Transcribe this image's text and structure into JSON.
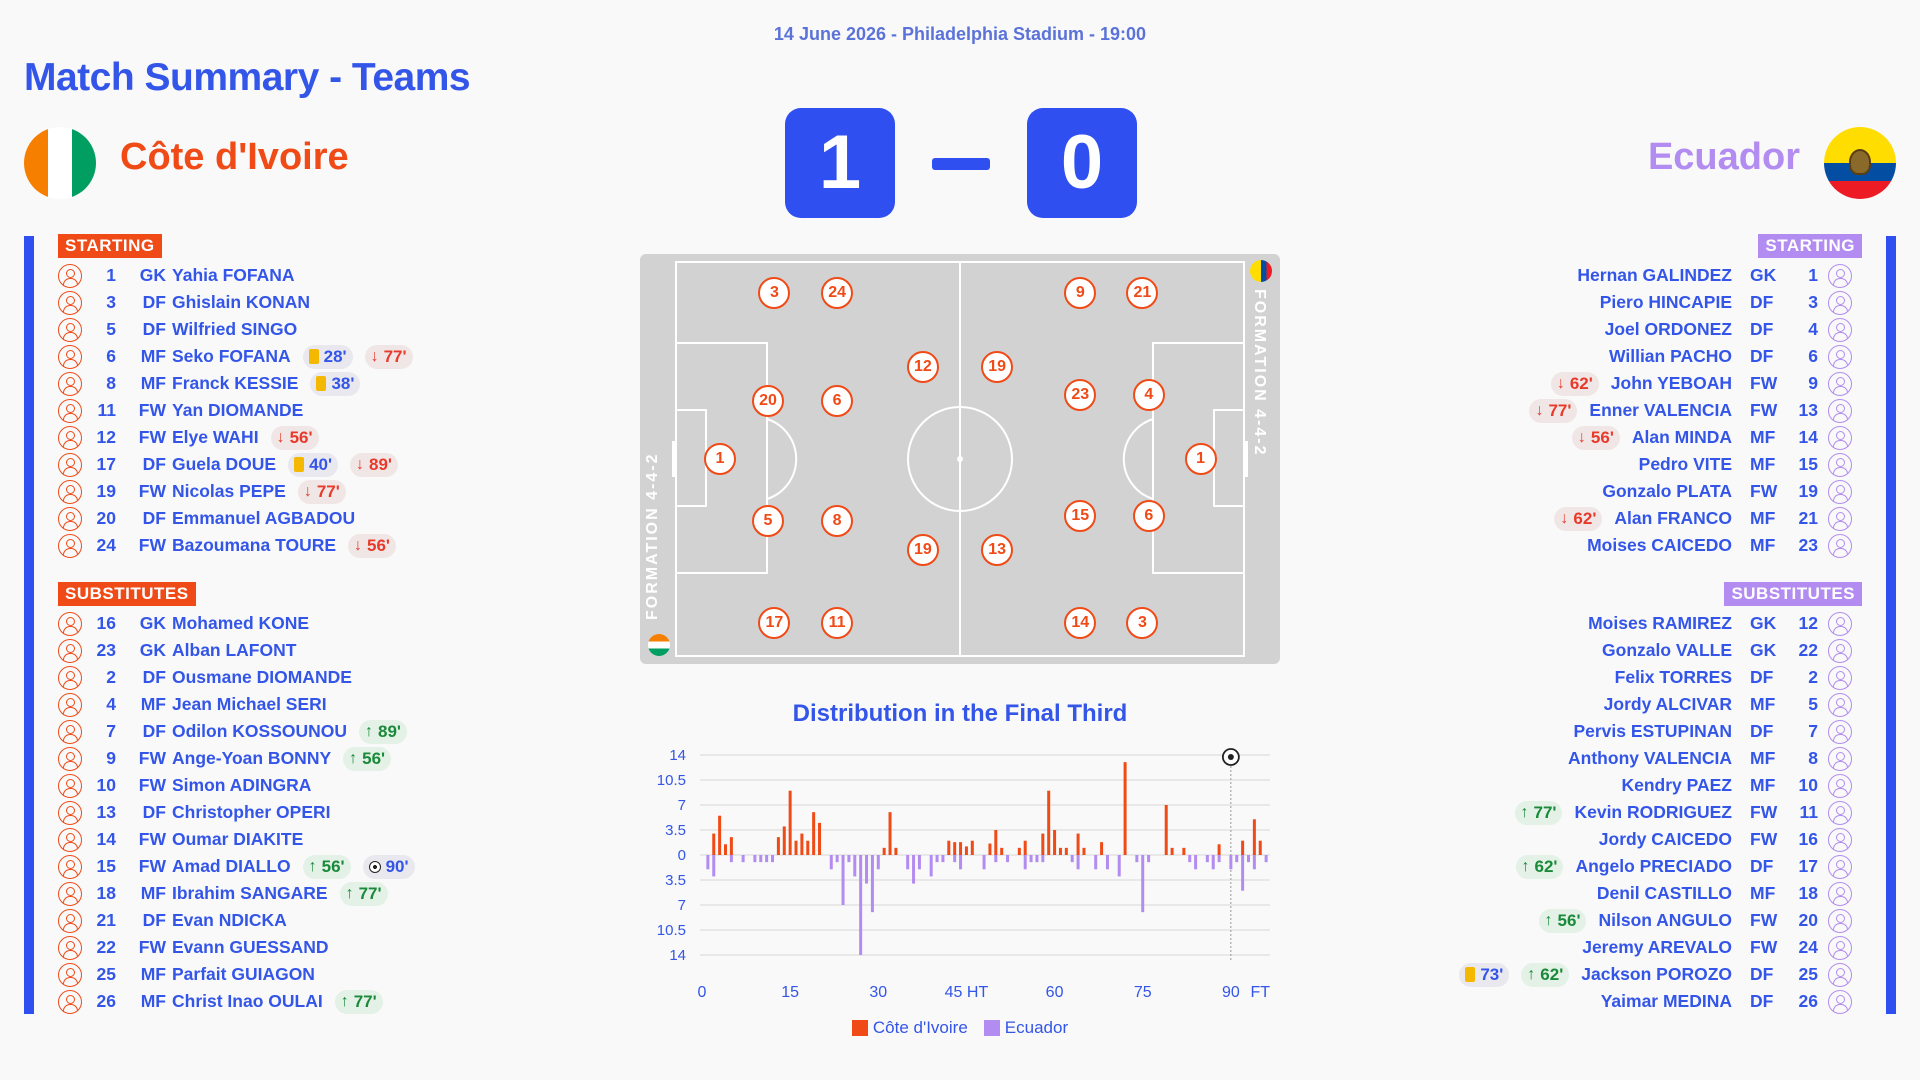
{
  "header": {
    "match_info": "14 June 2026 - Philadelphia Stadium - 19:00",
    "title": "Match Summary - Teams"
  },
  "home": {
    "name": "Côte d'Ivoire",
    "score": "1",
    "color": "#f04a16",
    "flag_icon": "cote-divoire-flag",
    "formation": "FORMATION 4-4-2",
    "starting_label": "STARTING",
    "subs_label": "SUBSTITUTES",
    "starting": [
      {
        "num": "1",
        "pos": "GK",
        "name": "Yahia FOFANA",
        "events": []
      },
      {
        "num": "3",
        "pos": "DF",
        "name": "Ghislain KONAN",
        "events": []
      },
      {
        "num": "5",
        "pos": "DF",
        "name": "Wilfried SINGO",
        "events": []
      },
      {
        "num": "6",
        "pos": "MF",
        "name": "Seko FOFANA",
        "events": [
          {
            "type": "card",
            "text": "28'"
          },
          {
            "type": "out",
            "text": "77'"
          }
        ]
      },
      {
        "num": "8",
        "pos": "MF",
        "name": "Franck KESSIE",
        "events": [
          {
            "type": "card",
            "text": "38'"
          }
        ]
      },
      {
        "num": "11",
        "pos": "FW",
        "name": "Yan DIOMANDE",
        "events": []
      },
      {
        "num": "12",
        "pos": "FW",
        "name": "Elye WAHI",
        "events": [
          {
            "type": "out",
            "text": "56'"
          }
        ]
      },
      {
        "num": "17",
        "pos": "DF",
        "name": "Guela DOUE",
        "events": [
          {
            "type": "card",
            "text": "40'"
          },
          {
            "type": "out",
            "text": "89'"
          }
        ]
      },
      {
        "num": "19",
        "pos": "FW",
        "name": "Nicolas PEPE",
        "events": [
          {
            "type": "out",
            "text": "77'"
          }
        ]
      },
      {
        "num": "20",
        "pos": "DF",
        "name": "Emmanuel AGBADOU",
        "events": []
      },
      {
        "num": "24",
        "pos": "FW",
        "name": "Bazoumana TOURE",
        "events": [
          {
            "type": "out",
            "text": "56'"
          }
        ]
      }
    ],
    "substitutes": [
      {
        "num": "16",
        "pos": "GK",
        "name": "Mohamed KONE",
        "events": []
      },
      {
        "num": "23",
        "pos": "GK",
        "name": "Alban LAFONT",
        "events": []
      },
      {
        "num": "2",
        "pos": "DF",
        "name": "Ousmane DIOMANDE",
        "events": []
      },
      {
        "num": "4",
        "pos": "MF",
        "name": "Jean Michael SERI",
        "events": []
      },
      {
        "num": "7",
        "pos": "DF",
        "name": "Odilon KOSSOUNOU",
        "events": [
          {
            "type": "in",
            "text": "89'"
          }
        ]
      },
      {
        "num": "9",
        "pos": "FW",
        "name": "Ange-Yoan BONNY",
        "events": [
          {
            "type": "in",
            "text": "56'"
          }
        ]
      },
      {
        "num": "10",
        "pos": "FW",
        "name": "Simon ADINGRA",
        "events": []
      },
      {
        "num": "13",
        "pos": "DF",
        "name": "Christopher OPERI",
        "events": []
      },
      {
        "num": "14",
        "pos": "FW",
        "name": "Oumar DIAKITE",
        "events": []
      },
      {
        "num": "15",
        "pos": "FW",
        "name": "Amad DIALLO",
        "events": [
          {
            "type": "in",
            "text": "56'"
          },
          {
            "type": "goal",
            "text": "90'"
          }
        ]
      },
      {
        "num": "18",
        "pos": "MF",
        "name": "Ibrahim SANGARE",
        "events": [
          {
            "type": "in",
            "text": "77'"
          }
        ]
      },
      {
        "num": "21",
        "pos": "DF",
        "name": "Evan NDICKA",
        "events": []
      },
      {
        "num": "22",
        "pos": "FW",
        "name": "Evann GUESSAND",
        "events": []
      },
      {
        "num": "25",
        "pos": "MF",
        "name": "Parfait GUIAGON",
        "events": []
      },
      {
        "num": "26",
        "pos": "MF",
        "name": "Christ Inao OULAI",
        "events": [
          {
            "type": "in",
            "text": "77'"
          }
        ]
      }
    ],
    "lineup": [
      {
        "num": "1",
        "fx": 0.125,
        "fy": 0.5
      },
      {
        "num": "3",
        "fx": 0.21,
        "fy": 0.095
      },
      {
        "num": "24",
        "fx": 0.308,
        "fy": 0.095
      },
      {
        "num": "20",
        "fx": 0.2,
        "fy": 0.358
      },
      {
        "num": "6",
        "fx": 0.308,
        "fy": 0.358
      },
      {
        "num": "5",
        "fx": 0.2,
        "fy": 0.65
      },
      {
        "num": "8",
        "fx": 0.308,
        "fy": 0.65
      },
      {
        "num": "12",
        "fx": 0.442,
        "fy": 0.275
      },
      {
        "num": "19",
        "fx": 0.442,
        "fy": 0.722
      },
      {
        "num": "17",
        "fx": 0.21,
        "fy": 0.9
      },
      {
        "num": "11",
        "fx": 0.308,
        "fy": 0.9
      }
    ]
  },
  "away": {
    "name": "Ecuador",
    "score": "0",
    "color": "#b28cf0",
    "flag_icon": "ecuador-flag",
    "formation": "FORMATION 4-4-2",
    "starting_label": "STARTING",
    "subs_label": "SUBSTITUTES",
    "starting": [
      {
        "num": "1",
        "pos": "GK",
        "name": "Hernan GALINDEZ",
        "events": []
      },
      {
        "num": "3",
        "pos": "DF",
        "name": "Piero HINCAPIE",
        "events": []
      },
      {
        "num": "4",
        "pos": "DF",
        "name": "Joel ORDONEZ",
        "events": []
      },
      {
        "num": "6",
        "pos": "DF",
        "name": "Willian PACHO",
        "events": []
      },
      {
        "num": "9",
        "pos": "FW",
        "name": "John YEBOAH",
        "events": [
          {
            "type": "out",
            "text": "62'"
          }
        ]
      },
      {
        "num": "13",
        "pos": "FW",
        "name": "Enner VALENCIA",
        "events": [
          {
            "type": "out",
            "text": "77'"
          }
        ]
      },
      {
        "num": "14",
        "pos": "MF",
        "name": "Alan MINDA",
        "events": [
          {
            "type": "out",
            "text": "56'"
          }
        ]
      },
      {
        "num": "15",
        "pos": "MF",
        "name": "Pedro VITE",
        "events": []
      },
      {
        "num": "19",
        "pos": "FW",
        "name": "Gonzalo PLATA",
        "events": []
      },
      {
        "num": "21",
        "pos": "MF",
        "name": "Alan FRANCO",
        "events": [
          {
            "type": "out",
            "text": "62'"
          }
        ]
      },
      {
        "num": "23",
        "pos": "MF",
        "name": "Moises CAICEDO",
        "events": []
      }
    ],
    "substitutes": [
      {
        "num": "12",
        "pos": "GK",
        "name": "Moises RAMIREZ",
        "events": []
      },
      {
        "num": "22",
        "pos": "GK",
        "name": "Gonzalo VALLE",
        "events": []
      },
      {
        "num": "2",
        "pos": "DF",
        "name": "Felix TORRES",
        "events": []
      },
      {
        "num": "5",
        "pos": "MF",
        "name": "Jordy ALCIVAR",
        "events": []
      },
      {
        "num": "7",
        "pos": "DF",
        "name": "Pervis ESTUPINAN",
        "events": []
      },
      {
        "num": "8",
        "pos": "MF",
        "name": "Anthony VALENCIA",
        "events": []
      },
      {
        "num": "10",
        "pos": "MF",
        "name": "Kendry PAEZ",
        "events": []
      },
      {
        "num": "11",
        "pos": "FW",
        "name": "Kevin RODRIGUEZ",
        "events": [
          {
            "type": "in",
            "text": "77'"
          }
        ]
      },
      {
        "num": "16",
        "pos": "FW",
        "name": "Jordy CAICEDO",
        "events": []
      },
      {
        "num": "17",
        "pos": "DF",
        "name": "Angelo PRECIADO",
        "events": [
          {
            "type": "in",
            "text": "62'"
          }
        ]
      },
      {
        "num": "18",
        "pos": "MF",
        "name": "Denil CASTILLO",
        "events": []
      },
      {
        "num": "20",
        "pos": "FW",
        "name": "Nilson ANGULO",
        "events": [
          {
            "type": "in",
            "text": "56'"
          }
        ]
      },
      {
        "num": "24",
        "pos": "FW",
        "name": "Jeremy AREVALO",
        "events": []
      },
      {
        "num": "25",
        "pos": "DF",
        "name": "Jackson POROZO",
        "events": [
          {
            "type": "card",
            "text": "73'"
          },
          {
            "type": "in",
            "text": "62'"
          }
        ]
      },
      {
        "num": "26",
        "pos": "DF",
        "name": "Yaimar MEDINA",
        "events": []
      }
    ],
    "lineup": [
      {
        "num": "1",
        "fx": 0.876,
        "fy": 0.5
      },
      {
        "num": "9",
        "fx": 0.688,
        "fy": 0.095
      },
      {
        "num": "21",
        "fx": 0.785,
        "fy": 0.095
      },
      {
        "num": "23",
        "fx": 0.688,
        "fy": 0.345
      },
      {
        "num": "4",
        "fx": 0.795,
        "fy": 0.345
      },
      {
        "num": "15",
        "fx": 0.688,
        "fy": 0.64
      },
      {
        "num": "6",
        "fx": 0.795,
        "fy": 0.64
      },
      {
        "num": "19",
        "fx": 0.558,
        "fy": 0.275
      },
      {
        "num": "13",
        "fx": 0.558,
        "fy": 0.722
      },
      {
        "num": "14",
        "fx": 0.688,
        "fy": 0.9
      },
      {
        "num": "3",
        "fx": 0.785,
        "fy": 0.9
      }
    ]
  },
  "chart_data": {
    "type": "bar",
    "title": "Distribution in the Final Third",
    "x_ticks": [
      "0",
      "15",
      "30",
      "45 HT",
      "60",
      "75",
      "90",
      "FT"
    ],
    "x_tick_minutes": [
      0,
      15,
      30,
      45,
      60,
      75,
      90,
      95
    ],
    "y_ticks": [
      "14",
      "10.5",
      "7",
      "3.5",
      "0",
      "3.5",
      "7",
      "10.5",
      "14"
    ],
    "ylim": [
      -14,
      14
    ],
    "goal_minute": 90,
    "series": [
      {
        "name": "Côte d'Ivoire",
        "color": "#f04a16",
        "minutes": [
          2,
          3,
          4,
          5,
          13,
          14,
          15,
          16,
          17,
          18,
          19,
          20,
          31,
          32,
          33,
          42,
          43,
          44,
          45,
          46,
          49,
          50,
          51,
          54,
          55,
          58,
          59,
          60,
          61,
          62,
          64,
          65,
          68,
          72,
          79,
          80,
          82,
          88,
          92,
          94,
          95
        ],
        "values": [
          3,
          5.5,
          1.5,
          2.5,
          2.5,
          4,
          9,
          2,
          3,
          2,
          6,
          4.5,
          1,
          6,
          1,
          2,
          1.8,
          1.8,
          1.2,
          2,
          1.6,
          3.5,
          1,
          1,
          2,
          3,
          9,
          3.5,
          1,
          1,
          3,
          1,
          1.8,
          13,
          7,
          1,
          1,
          1.5,
          2,
          5,
          2
        ]
      },
      {
        "name": "Ecuador",
        "color": "#b28cf0",
        "minutes": [
          1,
          2,
          5,
          7,
          9,
          10,
          11,
          12,
          22,
          23,
          24,
          25,
          26,
          27,
          28,
          29,
          30,
          35,
          36,
          37,
          39,
          40,
          41,
          43,
          44,
          48,
          50,
          52,
          55,
          56,
          57,
          58,
          63,
          64,
          67,
          69,
          71,
          74,
          75,
          76,
          83,
          84,
          86,
          87,
          88,
          90,
          91,
          92,
          93,
          94,
          96
        ],
        "values": [
          2,
          3,
          1,
          1,
          1,
          1,
          1,
          1,
          2,
          1,
          7,
          1,
          3,
          14,
          4,
          8,
          2,
          2,
          4,
          2,
          3,
          1,
          1,
          1,
          2,
          2,
          1,
          1,
          2,
          1,
          1,
          1,
          1,
          2,
          2,
          2,
          3,
          1,
          8,
          1,
          1,
          2,
          1,
          2,
          1,
          2,
          1,
          5,
          1,
          2,
          1
        ]
      }
    ]
  }
}
